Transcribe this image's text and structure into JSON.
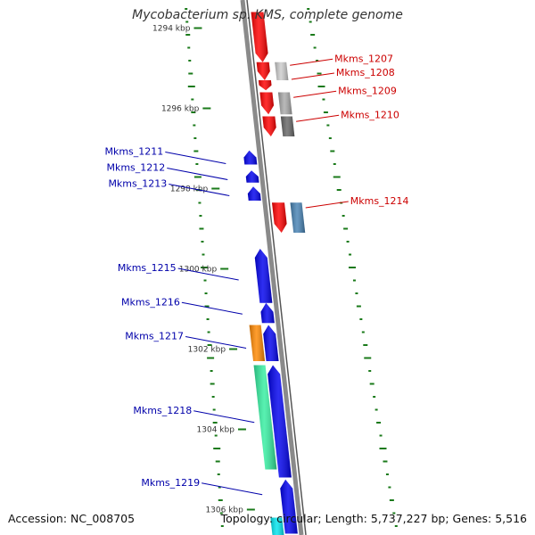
{
  "header": {
    "title": "Mycobacterium sp. KMS, complete genome"
  },
  "footer": {
    "accession": "Accession: NC_008705",
    "summary": "Topology: circular; Length: 5,737,227 bp; Genes: 5,516"
  },
  "colors": {
    "backbone": "#8a8a8a",
    "forward_label": "#cc0000",
    "reverse_label": "#0000aa",
    "tick": "#1a7a1a",
    "red": "#ff0000",
    "blue": "#0000ee",
    "grey_light": "#cccccc",
    "grey_mid": "#a9a9a9",
    "grey_dark": "#666666",
    "steel": "#4682b4",
    "orange": "#ff8800",
    "mint": "#33eea0",
    "cyan": "#00e5ee"
  },
  "scale_labels": [
    {
      "text": "1294 kbp",
      "pos_kbp": 1294.0
    },
    {
      "text": "1296 kbp",
      "pos_kbp": 1296.0
    },
    {
      "text": "1298 kbp",
      "pos_kbp": 1298.0
    },
    {
      "text": "1300 kbp",
      "pos_kbp": 1300.0
    },
    {
      "text": "1302 kbp",
      "pos_kbp": 1302.0
    },
    {
      "text": "1304 kbp",
      "pos_kbp": 1304.0
    },
    {
      "text": "1306 kbp",
      "pos_kbp": 1306.0
    }
  ],
  "gene_labels": [
    {
      "text": "Mkms_1207",
      "strand": "forward",
      "pos_kbp": 1294.75
    },
    {
      "text": "Mkms_1208",
      "strand": "forward",
      "pos_kbp": 1295.1
    },
    {
      "text": "Mkms_1209",
      "strand": "forward",
      "pos_kbp": 1295.55
    },
    {
      "text": "Mkms_1210",
      "strand": "forward",
      "pos_kbp": 1296.15
    },
    {
      "text": "Mkms_1211",
      "strand": "reverse",
      "pos_kbp": 1297.2
    },
    {
      "text": "Mkms_1212",
      "strand": "reverse",
      "pos_kbp": 1297.6
    },
    {
      "text": "Mkms_1213",
      "strand": "reverse",
      "pos_kbp": 1298.0
    },
    {
      "text": "Mkms_1214",
      "strand": "forward",
      "pos_kbp": 1298.3
    },
    {
      "text": "Mkms_1215",
      "strand": "reverse",
      "pos_kbp": 1300.1
    },
    {
      "text": "Mkms_1216",
      "strand": "reverse",
      "pos_kbp": 1300.95
    },
    {
      "text": "Mkms_1217",
      "strand": "reverse",
      "pos_kbp": 1301.8
    },
    {
      "text": "Mkms_1218",
      "strand": "reverse",
      "pos_kbp": 1303.65
    },
    {
      "text": "Mkms_1219",
      "strand": "reverse",
      "pos_kbp": 1305.45
    }
  ],
  "features": [
    {
      "kind": "arrow",
      "ring": 1,
      "color": "red",
      "start_kbp": 1293.6,
      "end_kbp": 1294.85
    },
    {
      "kind": "arrow",
      "ring": 1,
      "color": "red",
      "start_kbp": 1294.85,
      "end_kbp": 1295.3
    },
    {
      "kind": "arrow",
      "ring": 1,
      "color": "red",
      "start_kbp": 1295.3,
      "end_kbp": 1295.55
    },
    {
      "kind": "arrow",
      "ring": 1,
      "color": "red",
      "start_kbp": 1295.6,
      "end_kbp": 1296.15
    },
    {
      "kind": "arrow",
      "ring": 1,
      "color": "red",
      "start_kbp": 1296.2,
      "end_kbp": 1296.7
    },
    {
      "kind": "box",
      "ring": 2,
      "color": "grey_light",
      "start_kbp": 1294.85,
      "end_kbp": 1295.3
    },
    {
      "kind": "box",
      "ring": 2,
      "color": "grey_mid",
      "start_kbp": 1295.6,
      "end_kbp": 1296.15
    },
    {
      "kind": "box",
      "ring": 2,
      "color": "grey_dark",
      "start_kbp": 1296.2,
      "end_kbp": 1296.7
    },
    {
      "kind": "arrow",
      "ring": -1,
      "color": "blue",
      "start_kbp": 1297.05,
      "end_kbp": 1297.4,
      "dir": "up"
    },
    {
      "kind": "arrow",
      "ring": -1,
      "color": "blue",
      "start_kbp": 1297.55,
      "end_kbp": 1297.85,
      "dir": "up"
    },
    {
      "kind": "arrow",
      "ring": -1,
      "color": "blue",
      "start_kbp": 1297.95,
      "end_kbp": 1298.3,
      "dir": "up"
    },
    {
      "kind": "arrow",
      "ring": 1,
      "color": "red",
      "start_kbp": 1298.35,
      "end_kbp": 1299.1
    },
    {
      "kind": "box",
      "ring": 2,
      "color": "steel",
      "start_kbp": 1298.35,
      "end_kbp": 1299.1
    },
    {
      "kind": "arrow",
      "ring": -1,
      "color": "blue",
      "start_kbp": 1299.5,
      "end_kbp": 1300.85,
      "dir": "up"
    },
    {
      "kind": "arrow",
      "ring": -1,
      "color": "blue",
      "start_kbp": 1300.85,
      "end_kbp": 1301.35,
      "dir": "up"
    },
    {
      "kind": "arrow",
      "ring": -1,
      "color": "blue",
      "start_kbp": 1301.4,
      "end_kbp": 1302.3,
      "dir": "up"
    },
    {
      "kind": "box",
      "ring": -2,
      "color": "orange",
      "start_kbp": 1301.4,
      "end_kbp": 1302.3
    },
    {
      "kind": "arrow",
      "ring": -1,
      "color": "blue",
      "start_kbp": 1302.4,
      "end_kbp": 1305.2,
      "dir": "up"
    },
    {
      "kind": "box",
      "ring": -2,
      "color": "mint",
      "start_kbp": 1302.4,
      "end_kbp": 1305.0
    },
    {
      "kind": "arrow",
      "ring": -1,
      "color": "blue",
      "start_kbp": 1305.25,
      "end_kbp": 1306.6,
      "dir": "up"
    },
    {
      "kind": "box",
      "ring": -2,
      "color": "cyan",
      "start_kbp": 1306.2,
      "end_kbp": 1306.7
    }
  ]
}
